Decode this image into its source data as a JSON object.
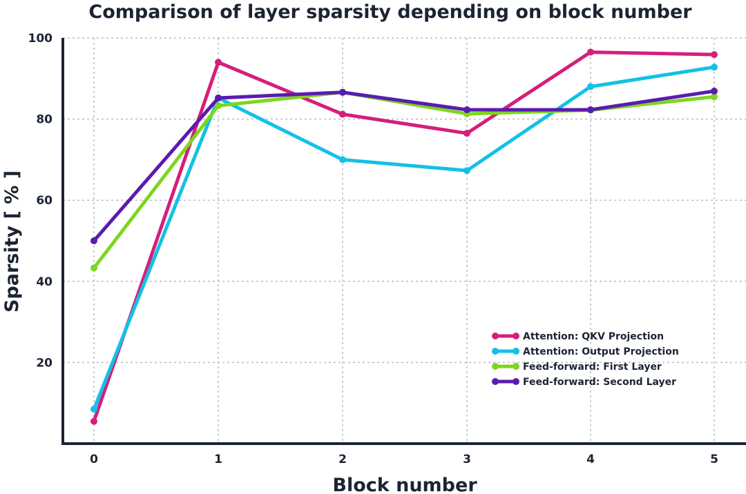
{
  "chart_data": {
    "type": "line",
    "title": "Comparison of layer sparsity depending on block number",
    "xlabel": "Block number",
    "ylabel": "Sparsity [ % ]",
    "x": [
      0,
      1,
      2,
      3,
      4,
      5
    ],
    "x_tick_labels": [
      "0",
      "1",
      "2",
      "3",
      "4",
      "5"
    ],
    "y_ticks": [
      20,
      40,
      60,
      80,
      100
    ],
    "ylim": [
      0,
      100
    ],
    "grid": true,
    "legend_position": "lower-right",
    "series": [
      {
        "name": "Attention: QKV Projection",
        "color": "#d41f7c",
        "values": [
          5.5,
          94,
          81.2,
          76.5,
          96.5,
          95.9
        ]
      },
      {
        "name": "Attention: Output Projection",
        "color": "#12c1e6",
        "values": [
          8.5,
          85.2,
          70,
          67.3,
          88,
          92.8
        ]
      },
      {
        "name": "Feed-forward: First Layer",
        "color": "#7dd61f",
        "values": [
          43.3,
          83.3,
          86.6,
          81.3,
          82.2,
          85.5
        ]
      },
      {
        "name": "Feed-forward: Second Layer",
        "color": "#5a1bb0",
        "values": [
          50,
          85.2,
          86.6,
          82.3,
          82.3,
          86.9
        ]
      }
    ]
  }
}
